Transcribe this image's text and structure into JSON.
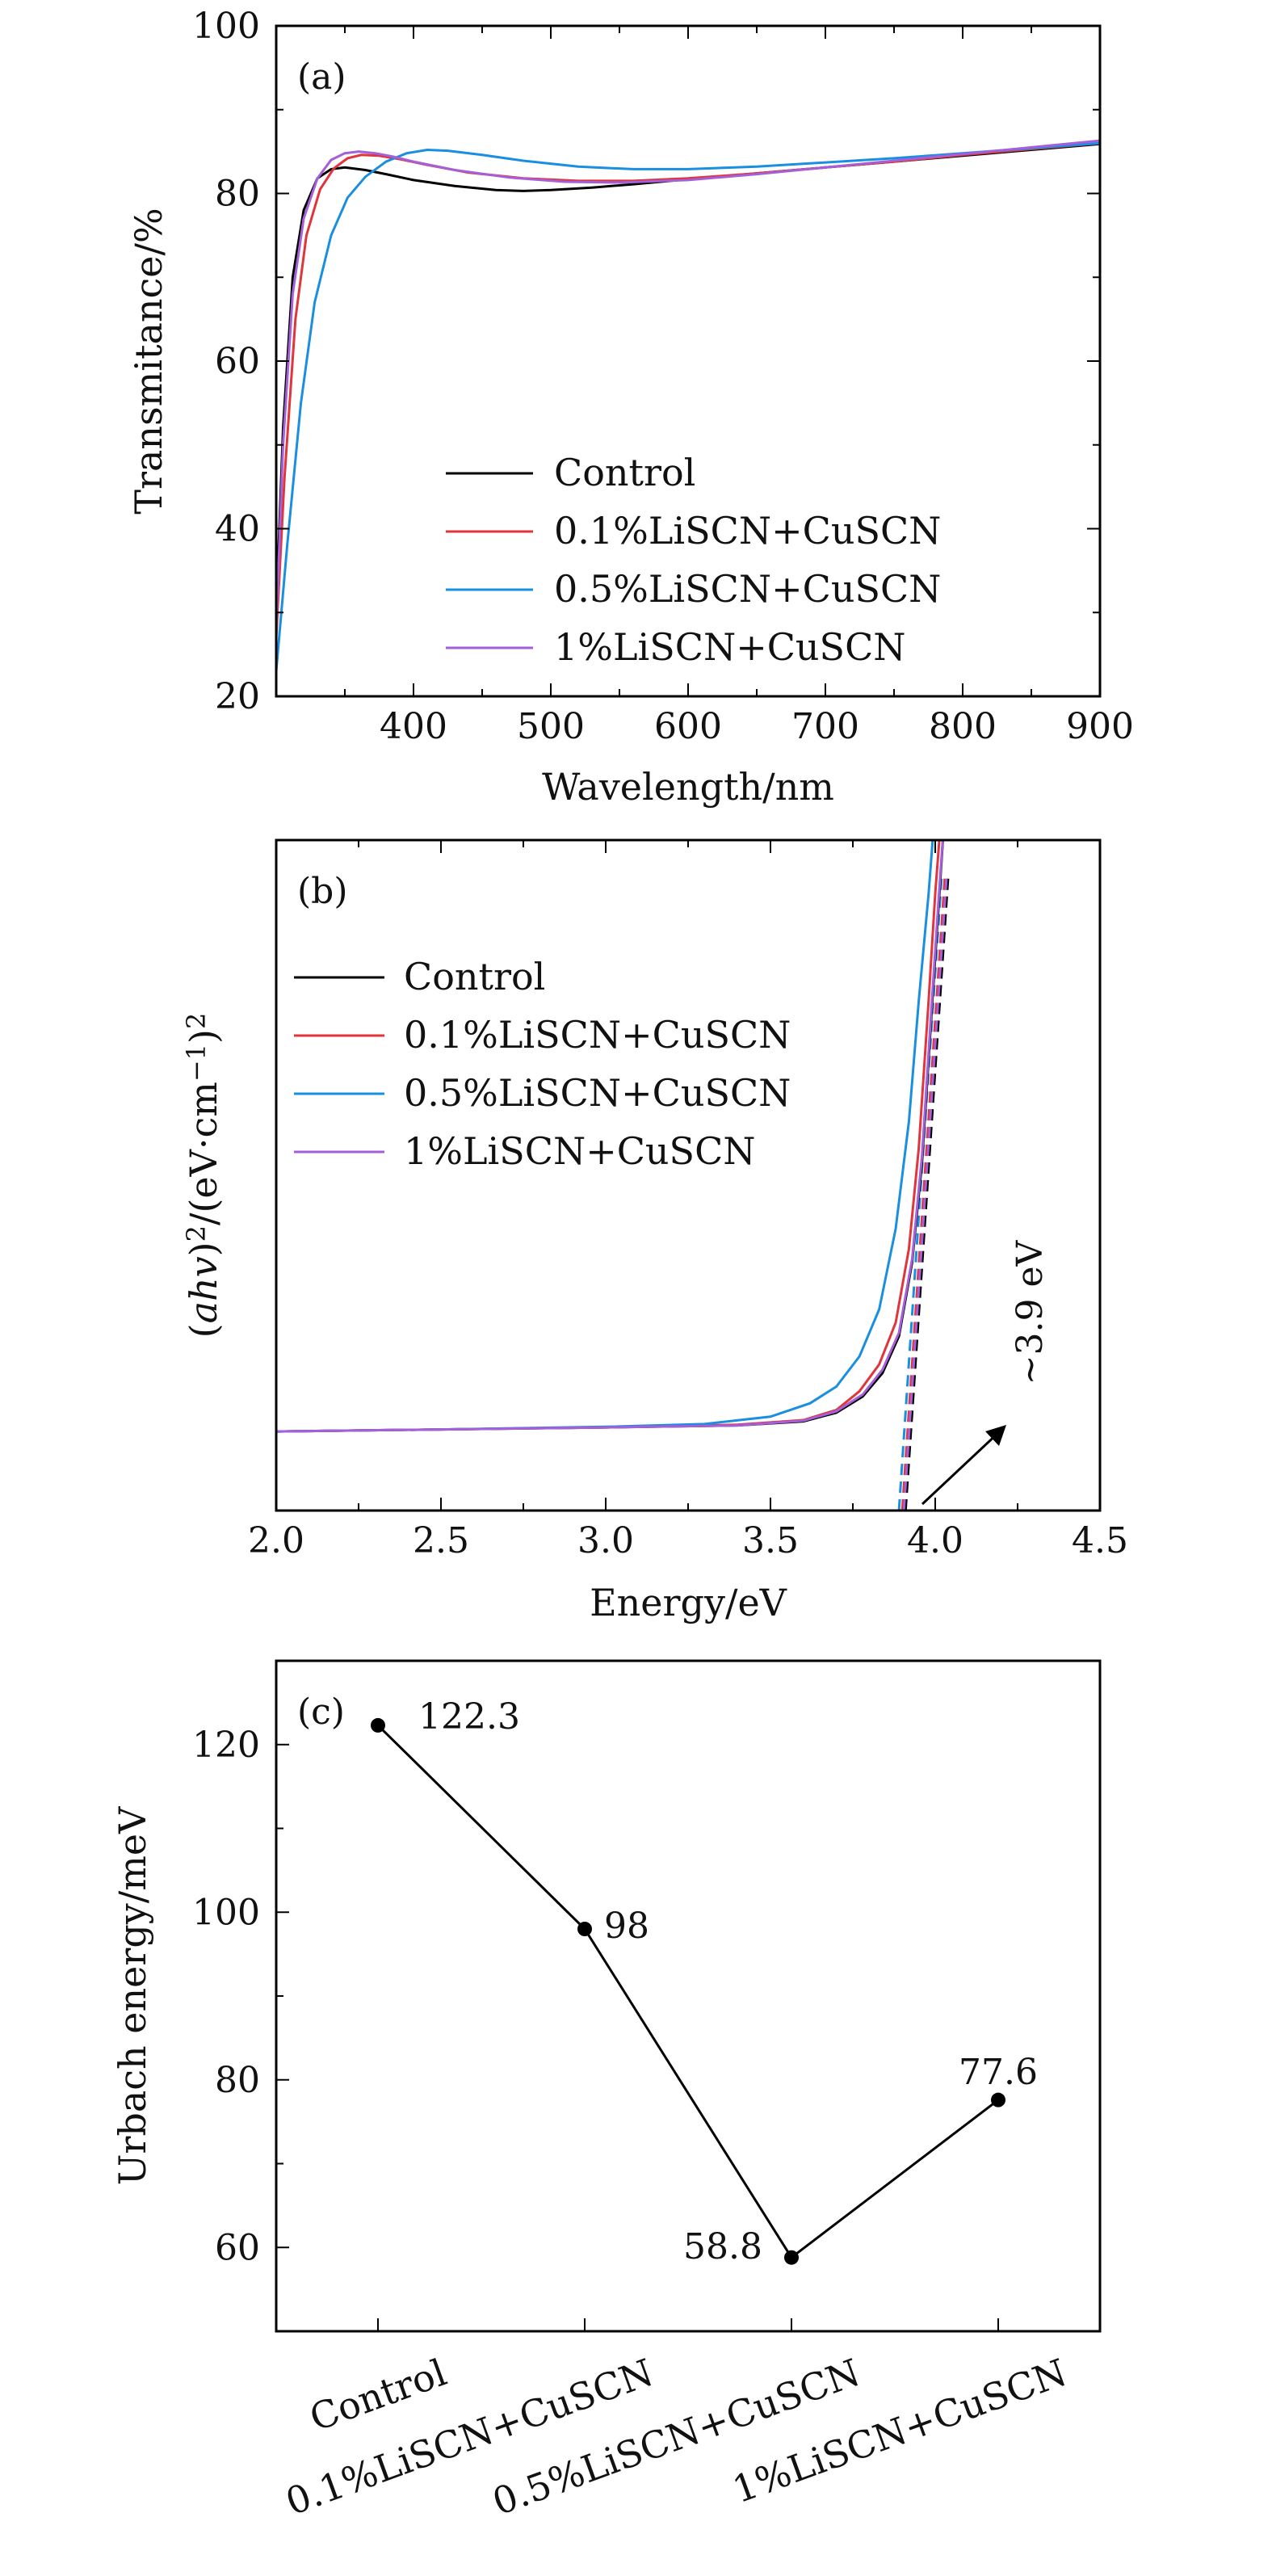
{
  "colors": {
    "control": "#000000",
    "p01": "#e0353a",
    "p05": "#1a8fe0",
    "p1": "#a55fd8"
  },
  "chart_data": [
    {
      "type": "line",
      "panel_label": "(a)",
      "xlabel": "Wavelength/nm",
      "ylabel": "Transmitance/%",
      "xlim": [
        300,
        900
      ],
      "ylim": [
        20,
        100
      ],
      "xticks": [
        400,
        500,
        600,
        700,
        800,
        900
      ],
      "yticks": [
        20,
        40,
        60,
        80,
        100
      ],
      "legend_position": "lower-right",
      "series": [
        {
          "name": "Control",
          "color_key": "control",
          "x": [
            300,
            305,
            312,
            320,
            330,
            340,
            350,
            365,
            380,
            400,
            430,
            460,
            480,
            500,
            530,
            560,
            600,
            650,
            700,
            750,
            800,
            850,
            900
          ],
          "y": [
            30,
            52,
            70,
            78,
            81.8,
            82.9,
            83.1,
            82.8,
            82.3,
            81.6,
            80.9,
            80.4,
            80.3,
            80.4,
            80.7,
            81.1,
            81.7,
            82.4,
            83.1,
            83.8,
            84.5,
            85.2,
            85.9
          ]
        },
        {
          "name": "0.1%LiSCN+CuSCN",
          "color_key": "p01",
          "x": [
            300,
            306,
            314,
            322,
            332,
            342,
            352,
            362,
            375,
            390,
            410,
            440,
            480,
            520,
            560,
            600,
            650,
            700,
            750,
            800,
            850,
            900
          ],
          "y": [
            27,
            46,
            65,
            75,
            80.5,
            83,
            84.2,
            84.6,
            84.5,
            84.1,
            83.4,
            82.5,
            81.8,
            81.5,
            81.5,
            81.8,
            82.4,
            83.1,
            83.8,
            84.6,
            85.3,
            86.0
          ]
        },
        {
          "name": "0.5%LiSCN+CuSCN",
          "color_key": "p05",
          "x": [
            300,
            308,
            318,
            328,
            340,
            352,
            365,
            380,
            395,
            410,
            425,
            450,
            480,
            520,
            560,
            600,
            650,
            700,
            750,
            800,
            850,
            900
          ],
          "y": [
            23,
            38,
            55,
            67,
            75,
            79.5,
            82,
            83.8,
            84.8,
            85.2,
            85.1,
            84.6,
            83.9,
            83.2,
            82.9,
            82.9,
            83.2,
            83.7,
            84.2,
            84.8,
            85.4,
            86.0
          ]
        },
        {
          "name": "1%LiSCN+CuSCN",
          "color_key": "p1",
          "x": [
            300,
            305,
            312,
            320,
            330,
            340,
            350,
            360,
            372,
            385,
            400,
            430,
            470,
            510,
            550,
            600,
            650,
            700,
            750,
            800,
            850,
            900
          ],
          "y": [
            28,
            50,
            68,
            77,
            81.8,
            84,
            84.8,
            85,
            84.8,
            84.4,
            83.8,
            82.8,
            81.9,
            81.4,
            81.3,
            81.6,
            82.3,
            83.1,
            83.9,
            84.7,
            85.5,
            86.3
          ]
        }
      ]
    },
    {
      "type": "line",
      "panel_label": "(b)",
      "xlabel": "Energy/eV",
      "ylabel": "(ahv)²/(eV·cm⁻¹)²",
      "xlim": [
        2.0,
        4.5
      ],
      "ylim": [
        0,
        1
      ],
      "xticks": [
        2.0,
        2.5,
        3.0,
        3.5,
        4.0,
        4.5
      ],
      "x_tick_labels": [
        "2.0",
        "2.5",
        "3.0",
        "3.5",
        "4.0",
        "4.5"
      ],
      "legend_position": "upper-left",
      "annotation": "~3.9 eV",
      "series": [
        {
          "name": "Control",
          "color_key": "control",
          "x": [
            2.0,
            2.5,
            3.0,
            3.4,
            3.6,
            3.7,
            3.78,
            3.84,
            3.89,
            3.93,
            3.96,
            3.99,
            4.01,
            4.03
          ],
          "y": [
            0.118,
            0.121,
            0.124,
            0.127,
            0.133,
            0.146,
            0.17,
            0.205,
            0.26,
            0.37,
            0.52,
            0.75,
            0.9,
            1.05
          ],
          "fit_x": [
            3.91,
            4.04
          ],
          "fit_y": [
            0.0,
            0.95
          ]
        },
        {
          "name": "0.1%LiSCN+CuSCN",
          "color_key": "p01",
          "x": [
            2.0,
            2.5,
            3.0,
            3.4,
            3.6,
            3.7,
            3.77,
            3.83,
            3.88,
            3.92,
            3.95,
            3.98,
            4.0,
            4.02
          ],
          "y": [
            0.118,
            0.121,
            0.124,
            0.128,
            0.135,
            0.15,
            0.178,
            0.218,
            0.28,
            0.39,
            0.54,
            0.76,
            0.92,
            1.05
          ],
          "fit_x": [
            3.9,
            4.03
          ],
          "fit_y": [
            0.0,
            0.95
          ]
        },
        {
          "name": "0.5%LiSCN+CuSCN",
          "color_key": "p05",
          "x": [
            2.0,
            2.5,
            3.0,
            3.3,
            3.5,
            3.62,
            3.7,
            3.77,
            3.83,
            3.88,
            3.92,
            3.95,
            3.98,
            4.0
          ],
          "y": [
            0.118,
            0.121,
            0.125,
            0.129,
            0.14,
            0.16,
            0.185,
            0.23,
            0.3,
            0.42,
            0.58,
            0.76,
            0.92,
            1.05
          ],
          "fit_x": [
            3.89,
            4.02
          ],
          "fit_y": [
            0.0,
            0.95
          ]
        },
        {
          "name": "1%LiSCN+CuSCN",
          "color_key": "p1",
          "x": [
            2.0,
            2.5,
            3.0,
            3.4,
            3.6,
            3.7,
            3.78,
            3.84,
            3.89,
            3.93,
            3.96,
            3.99,
            4.01,
            4.03
          ],
          "y": [
            0.118,
            0.121,
            0.124,
            0.127,
            0.134,
            0.148,
            0.173,
            0.21,
            0.265,
            0.375,
            0.53,
            0.76,
            0.91,
            1.05
          ],
          "fit_x": [
            3.905,
            4.035
          ],
          "fit_y": [
            0.0,
            0.95
          ]
        }
      ]
    },
    {
      "type": "line",
      "panel_label": "(c)",
      "xlabel": "",
      "ylabel": "Urbach energy/meV",
      "ylim": [
        50,
        130
      ],
      "yticks": [
        60,
        80,
        100,
        120
      ],
      "categories": [
        "Control",
        "0.1%LiSCN+CuSCN",
        "0.5%LiSCN+CuSCN",
        "1%LiSCN+CuSCN"
      ],
      "values": [
        122.3,
        98,
        58.8,
        77.6
      ],
      "data_labels": [
        "122.3",
        "98",
        "58.8",
        "77.6"
      ]
    }
  ]
}
